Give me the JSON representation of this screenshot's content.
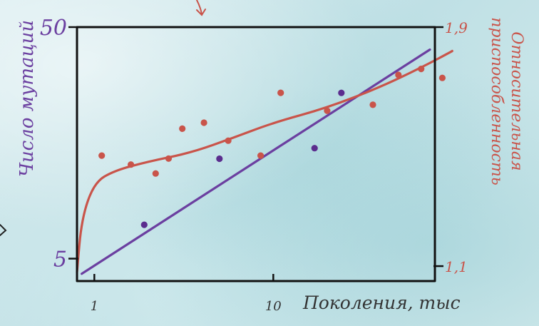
{
  "chart_data": {
    "type": "scatter",
    "xscale": "log",
    "xlim": [
      0.8,
      80
    ],
    "xticks": [
      1,
      10
    ],
    "xtick_labels": [
      "1",
      "10"
    ],
    "xlabel": "Поколения, тыс",
    "y_left": {
      "label": "Число мутаций",
      "scale": "log",
      "lim": [
        4,
        50
      ],
      "ticks": [
        5,
        50
      ],
      "tick_labels": [
        "5",
        "50"
      ],
      "color": "#6b3fa0"
    },
    "y_right": {
      "label_lines": [
        "Относительная",
        "приспособленность"
      ],
      "lim": [
        1.05,
        1.9
      ],
      "ticks": [
        1.1,
        1.9
      ],
      "tick_labels": [
        "1,1",
        "1,9"
      ],
      "color": "#c9544a"
    },
    "series": [
      {
        "axis": "left",
        "kind": "points",
        "color": "#5b2d8e",
        "points": [
          [
            1.9,
            7
          ],
          [
            5,
            13.5
          ],
          [
            17,
            15
          ],
          [
            24,
            26
          ]
        ]
      },
      {
        "axis": "left",
        "kind": "line",
        "color": "#6b3fa0",
        "points": [
          [
            0.85,
            4.3
          ],
          [
            75,
            40
          ]
        ]
      },
      {
        "axis": "right",
        "kind": "points",
        "color": "#c9544a",
        "points": [
          [
            1.1,
            1.47
          ],
          [
            1.6,
            1.44
          ],
          [
            2.2,
            1.41
          ],
          [
            2.6,
            1.46
          ],
          [
            3.1,
            1.56
          ],
          [
            4.1,
            1.58
          ],
          [
            5.6,
            1.52
          ],
          [
            8.5,
            1.47
          ],
          [
            11,
            1.68
          ],
          [
            20,
            1.62
          ],
          [
            36,
            1.64
          ],
          [
            50,
            1.74
          ],
          [
            67,
            1.76
          ],
          [
            88,
            1.73
          ]
        ]
      },
      {
        "axis": "right",
        "kind": "line",
        "color": "#c9544a",
        "points": [
          [
            0.8,
            1.08
          ],
          [
            0.85,
            1.26
          ],
          [
            1,
            1.38
          ],
          [
            1.3,
            1.42
          ],
          [
            2,
            1.45
          ],
          [
            3.5,
            1.48
          ],
          [
            6,
            1.53
          ],
          [
            10,
            1.58
          ],
          [
            20,
            1.63
          ],
          [
            40,
            1.7
          ],
          [
            70,
            1.77
          ],
          [
            100,
            1.82
          ]
        ]
      }
    ]
  }
}
